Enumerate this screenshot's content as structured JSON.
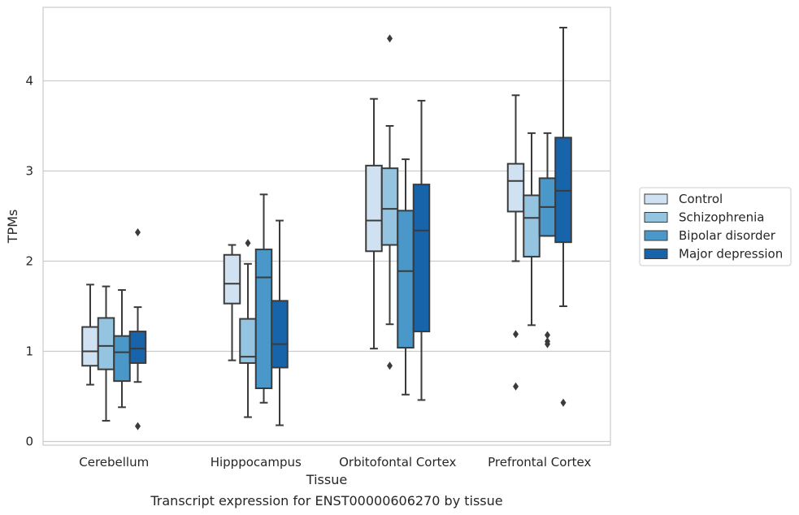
{
  "chart_data": {
    "type": "boxplot",
    "title": "",
    "caption": "Transcript expression for ENST00000606270 by tissue",
    "xlabel": "Tissue",
    "ylabel": "TPMs",
    "ylim": [
      -0.05,
      4.82
    ],
    "yticks": [
      0,
      1,
      2,
      3,
      4
    ],
    "grid": true,
    "legend_position": "right",
    "categories": [
      "Cerebellum",
      "Hipppocampus",
      "Orbitofontal Cortex",
      "Prefrontal Cortex"
    ],
    "series": [
      {
        "name": "Control",
        "color": "#d0e1f2",
        "boxes": [
          {
            "whisker_low": 0.63,
            "q1": 0.84,
            "median": 1.0,
            "q3": 1.27,
            "whisker_high": 1.74,
            "outliers": []
          },
          {
            "whisker_low": 0.9,
            "q1": 1.53,
            "median": 1.75,
            "q3": 2.07,
            "whisker_high": 2.18,
            "outliers": []
          },
          {
            "whisker_low": 1.03,
            "q1": 2.11,
            "median": 2.45,
            "q3": 3.06,
            "whisker_high": 3.8,
            "outliers": []
          },
          {
            "whisker_low": 2.0,
            "q1": 2.55,
            "median": 2.89,
            "q3": 3.08,
            "whisker_high": 3.84,
            "outliers": [
              1.19,
              0.61
            ]
          }
        ]
      },
      {
        "name": "Schizophrenia",
        "color": "#94c4df",
        "boxes": [
          {
            "whisker_low": 0.23,
            "q1": 0.8,
            "median": 1.06,
            "q3": 1.37,
            "whisker_high": 1.72,
            "outliers": []
          },
          {
            "whisker_low": 0.27,
            "q1": 0.87,
            "median": 0.94,
            "q3": 1.36,
            "whisker_high": 1.97,
            "outliers": [
              2.2
            ]
          },
          {
            "whisker_low": 1.3,
            "q1": 2.18,
            "median": 2.58,
            "q3": 3.03,
            "whisker_high": 3.5,
            "outliers": [
              0.84,
              4.47
            ]
          },
          {
            "whisker_low": 1.29,
            "q1": 2.05,
            "median": 2.48,
            "q3": 2.73,
            "whisker_high": 3.42,
            "outliers": []
          }
        ]
      },
      {
        "name": "Bipolar disorder",
        "color": "#4a98c9",
        "boxes": [
          {
            "whisker_low": 0.38,
            "q1": 0.67,
            "median": 0.99,
            "q3": 1.17,
            "whisker_high": 1.68,
            "outliers": []
          },
          {
            "whisker_low": 0.43,
            "q1": 0.59,
            "median": 1.82,
            "q3": 2.13,
            "whisker_high": 2.74,
            "outliers": []
          },
          {
            "whisker_low": 0.52,
            "q1": 1.04,
            "median": 1.89,
            "q3": 2.56,
            "whisker_high": 3.13,
            "outliers": []
          },
          {
            "whisker_low": 2.28,
            "q1": 2.28,
            "median": 2.6,
            "q3": 2.92,
            "whisker_high": 3.42,
            "outliers": [
              1.18,
              1.11,
              1.08
            ]
          }
        ]
      },
      {
        "name": "Major depression",
        "color": "#1764ab",
        "boxes": [
          {
            "whisker_low": 0.66,
            "q1": 0.87,
            "median": 1.03,
            "q3": 1.22,
            "whisker_high": 1.49,
            "outliers": [
              2.32,
              0.17
            ]
          },
          {
            "whisker_low": 0.18,
            "q1": 0.82,
            "median": 1.08,
            "q3": 1.56,
            "whisker_high": 2.45,
            "outliers": []
          },
          {
            "whisker_low": 0.46,
            "q1": 1.22,
            "median": 2.34,
            "q3": 2.85,
            "whisker_high": 3.78,
            "outliers": []
          },
          {
            "whisker_low": 1.5,
            "q1": 2.21,
            "median": 2.78,
            "q3": 3.37,
            "whisker_high": 4.59,
            "outliers": [
              0.43
            ]
          }
        ]
      }
    ]
  }
}
